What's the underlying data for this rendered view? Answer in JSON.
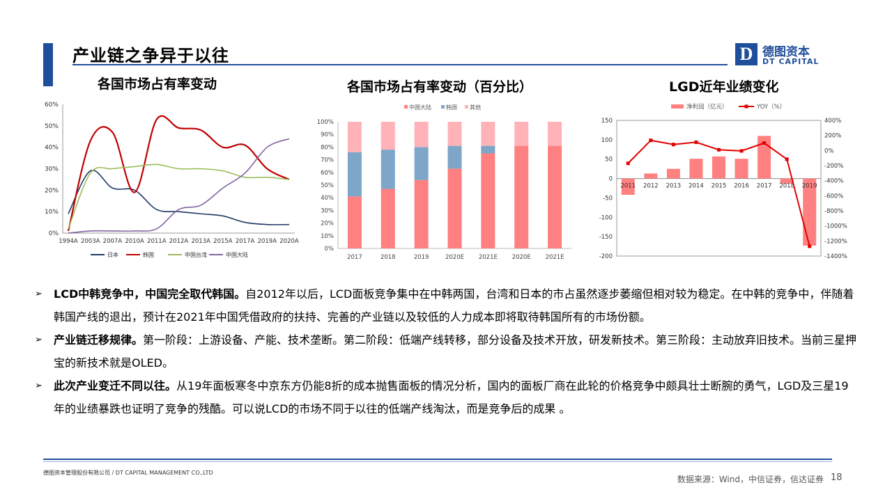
{
  "header": {
    "title": "产业链之争异于以往"
  },
  "logo": {
    "letter": "D",
    "cn": "德图资本",
    "en": "DT CAPITAL"
  },
  "charts": [
    {
      "title": "各国市场占有率变动",
      "chart_data": {
        "type": "line",
        "categories": [
          "1994A",
          "2003A",
          "2007A",
          "2010A",
          "2011A",
          "2012A",
          "2013A",
          "2015A",
          "2017A",
          "2019A",
          "2020A"
        ],
        "ylim": [
          0,
          60
        ],
        "yticks": [
          "0%",
          "10%",
          "20%",
          "30%",
          "40%",
          "50%",
          "60%"
        ],
        "legend_position": "bottom",
        "series": [
          {
            "name": "日本",
            "color": "#1f3864",
            "values": [
              9,
              29,
              21,
              20,
              11,
              10,
              9,
              8,
              5,
              4,
              4
            ]
          },
          {
            "name": "韩国",
            "color": "#c00000",
            "values": [
              1,
              43,
              47,
              19,
              53,
              49,
              48,
              40,
              41,
              30,
              25
            ]
          },
          {
            "name": "中国台湾",
            "color": "#9bbb59",
            "values": [
              2,
              28,
              30,
              31,
              32,
              30,
              30,
              29,
              26,
              26,
              25
            ]
          },
          {
            "name": "中国大陆",
            "color": "#8064a2",
            "values": [
              0,
              1,
              1,
              1,
              2,
              11,
              13,
              21,
              28,
              40,
              44
            ]
          }
        ]
      }
    },
    {
      "title": "各国市场占有率变动（百分比）",
      "chart_data": {
        "type": "bar",
        "stacked": true,
        "categories": [
          "2017",
          "2018",
          "2019",
          "2020E",
          "2021E",
          "2020E",
          "2021E"
        ],
        "ylim": [
          0,
          100
        ],
        "yticks": [
          "0%",
          "10%",
          "20%",
          "30%",
          "40%",
          "50%",
          "60%",
          "70%",
          "80%",
          "90%",
          "100%"
        ],
        "legend_position": "top",
        "series": [
          {
            "name": "中国大陆",
            "color": "#ff8080",
            "values": [
              41,
              47,
              54,
              63,
              75,
              81,
              81
            ]
          },
          {
            "name": "韩国",
            "color": "#7ea6c8",
            "values": [
              35,
              31,
              26,
              18,
              6,
              0,
              0
            ]
          },
          {
            "name": "其他",
            "color": "#ffb3b8",
            "values": [
              24,
              22,
              20,
              19,
              19,
              19,
              19
            ]
          }
        ]
      }
    },
    {
      "title": "LGD近年业绩变化",
      "chart_data": {
        "type": "bar",
        "categories": [
          "2011",
          "2012",
          "2013",
          "2014",
          "2015",
          "2016",
          "2017",
          "2018",
          "2019"
        ],
        "ylim": [
          -200,
          150
        ],
        "yticks": [
          "-200",
          "-150",
          "-100",
          "-50",
          "0",
          "50",
          "100",
          "150"
        ],
        "y2lim": [
          -1400,
          400
        ],
        "y2ticks": [
          "-1400%",
          "-1200%",
          "-1000%",
          "-800%",
          "-600%",
          "-400%",
          "-200%",
          "0%",
          "200%",
          "400%"
        ],
        "legend_position": "top",
        "series": [
          {
            "name": "净利润（亿元）",
            "type": "bar",
            "color": "#ff8080",
            "values": [
              -42,
              13,
              25,
              51,
              57,
              51,
              110,
              -13,
              -173
            ]
          },
          {
            "name": "YOY（%）",
            "type": "line",
            "axis": "right",
            "color": "#e00000",
            "values": [
              -170,
              135,
              80,
              110,
              10,
              -5,
              100,
              -115,
              -1270
            ]
          }
        ]
      }
    }
  ],
  "bullets": [
    {
      "bold": "LCD中韩竞争中，中国完全取代韩国。",
      "text": "自2012年以后，LCD面板竞争集中在中韩两国，台湾和日本的市占虽然逐步萎缩但相对较为稳定。在中韩的竞争中，伴随着韩国产线的退出，预计在2021年中国凭借政府的扶持、完善的产业链以及较低的人力成本即将取待韩国所有的市场份额。"
    },
    {
      "bold": "产业链迁移规律。",
      "text": "第一阶段：上游设备、产能、技术垄断。第二阶段：低端产线转移，部分设备及技术开放，研发新技术。第三阶段：主动放弃旧技术。当前三星押宝的新技术就是OLED。"
    },
    {
      "bold": "此次产业变迁不同以往。",
      "text": "从19年面板寒冬中京东方仍能8折的成本抛售面板的情况分析，国内的面板厂商在此轮的价格竞争中颇具壮士断腕的勇气，LGD及三星19年的业绩暴跌也证明了竞争的残酷。可以说LCD的市场不同于以往的低端产线淘汰，而是竞争后的成果 。"
    }
  ],
  "footer": {
    "company": "德图资本管理股份有限公司 / DT CAPITAL MANAGEMENT CO.,LTD",
    "source": "数据来源：Wind，中信证券，信达证券",
    "page_number": "18"
  }
}
